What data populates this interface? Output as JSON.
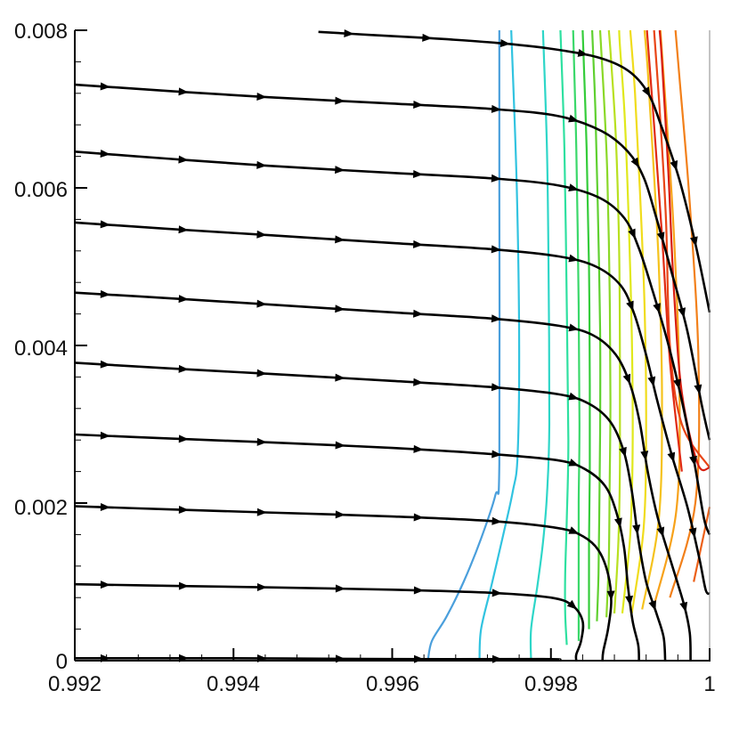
{
  "chart_data": {
    "type": "line",
    "title": "",
    "xlabel": "",
    "ylabel": "",
    "xlim": [
      0.992,
      1.0
    ],
    "ylim": [
      0,
      0.008
    ],
    "x_ticks": [
      "0.992",
      "0.994",
      "0.996",
      "0.998",
      "1"
    ],
    "y_ticks": [
      "0",
      "0.002",
      "0.004",
      "0.006",
      "0.008"
    ],
    "grid": false,
    "legend": "none",
    "streamlines": [
      {
        "points": [
          [
            0.99507,
            0.00798
          ],
          [
            0.99574,
            0.00794
          ],
          [
            0.99647,
            0.0079
          ],
          [
            0.99732,
            0.00784
          ],
          [
            0.99797,
            0.00777
          ],
          [
            0.99858,
            0.00766
          ],
          [
            0.99897,
            0.00749
          ],
          [
            0.99922,
            0.00721
          ],
          [
            0.9994,
            0.00676
          ],
          [
            0.99962,
            0.0061
          ],
          [
            0.99983,
            0.00525
          ],
          [
            1.0,
            0.00442
          ]
        ]
      },
      {
        "points": [
          [
            0.992,
            0.00731
          ],
          [
            0.99318,
            0.00723
          ],
          [
            0.99444,
            0.00715
          ],
          [
            0.996,
            0.00707
          ],
          [
            0.99727,
            0.007
          ],
          [
            0.9981,
            0.00691
          ],
          [
            0.99864,
            0.00672
          ],
          [
            0.99897,
            0.00646
          ],
          [
            0.99917,
            0.00613
          ],
          [
            0.99932,
            0.00565
          ],
          [
            0.99951,
            0.00497
          ],
          [
            0.99972,
            0.00418
          ],
          [
            0.9999,
            0.00325
          ],
          [
            1.0,
            0.0028
          ]
        ]
      },
      {
        "points": [
          [
            0.992,
            0.00646
          ],
          [
            0.99318,
            0.00637
          ],
          [
            0.99444,
            0.00628
          ],
          [
            0.996,
            0.00619
          ],
          [
            0.99727,
            0.00612
          ],
          [
            0.9981,
            0.00603
          ],
          [
            0.99862,
            0.00587
          ],
          [
            0.99893,
            0.00561
          ],
          [
            0.99911,
            0.00523
          ],
          [
            0.99928,
            0.0047
          ],
          [
            0.99947,
            0.00405
          ],
          [
            0.99965,
            0.0033
          ],
          [
            0.99981,
            0.0025
          ],
          [
            0.99993,
            0.0018
          ],
          [
            1.0,
            0.0016
          ]
        ]
      },
      {
        "points": [
          [
            0.992,
            0.00556
          ],
          [
            0.99318,
            0.00548
          ],
          [
            0.99444,
            0.0054
          ],
          [
            0.996,
            0.0053
          ],
          [
            0.99727,
            0.00522
          ],
          [
            0.9981,
            0.00513
          ],
          [
            0.99857,
            0.005
          ],
          [
            0.99888,
            0.00476
          ],
          [
            0.99905,
            0.0044
          ],
          [
            0.9992,
            0.00388
          ],
          [
            0.99934,
            0.0033
          ],
          [
            0.99952,
            0.00262
          ],
          [
            0.99972,
            0.00195
          ],
          [
            0.99987,
            0.0013
          ],
          [
            0.99995,
            0.0009
          ],
          [
            1.0,
            0.00085
          ]
        ]
      },
      {
        "points": [
          [
            0.992,
            0.00467
          ],
          [
            0.99318,
            0.0046
          ],
          [
            0.99444,
            0.00452
          ],
          [
            0.996,
            0.00442
          ],
          [
            0.99727,
            0.00434
          ],
          [
            0.9981,
            0.00425
          ],
          [
            0.99853,
            0.00413
          ],
          [
            0.99882,
            0.00388
          ],
          [
            0.999,
            0.0035
          ],
          [
            0.99912,
            0.00302
          ],
          [
            0.99922,
            0.0024
          ],
          [
            0.99935,
            0.0018
          ],
          [
            0.99953,
            0.0012
          ],
          [
            0.99968,
            0.0007
          ],
          [
            0.99975,
            0.00035
          ],
          [
            0.99976,
            0.0
          ]
        ]
      },
      {
        "points": [
          [
            0.992,
            0.00378
          ],
          [
            0.99318,
            0.00371
          ],
          [
            0.99444,
            0.00364
          ],
          [
            0.996,
            0.00355
          ],
          [
            0.99727,
            0.00347
          ],
          [
            0.9981,
            0.00338
          ],
          [
            0.99848,
            0.00326
          ],
          [
            0.99875,
            0.00303
          ],
          [
            0.99892,
            0.00265
          ],
          [
            0.99902,
            0.00215
          ],
          [
            0.9991,
            0.00155
          ],
          [
            0.9992,
            0.001
          ],
          [
            0.99933,
            0.0006
          ],
          [
            0.99942,
            0.0003
          ],
          [
            0.99944,
            0.0
          ]
        ]
      },
      {
        "points": [
          [
            0.992,
            0.00287
          ],
          [
            0.99318,
            0.00282
          ],
          [
            0.99444,
            0.00277
          ],
          [
            0.996,
            0.0027
          ],
          [
            0.99727,
            0.00262
          ],
          [
            0.9981,
            0.00254
          ],
          [
            0.99843,
            0.00243
          ],
          [
            0.99868,
            0.00222
          ],
          [
            0.99882,
            0.0019
          ],
          [
            0.99892,
            0.00145
          ],
          [
            0.99897,
            0.00095
          ],
          [
            0.99903,
            0.0005
          ],
          [
            0.9991,
            0.0002
          ],
          [
            0.99911,
            0.0
          ]
        ]
      },
      {
        "points": [
          [
            0.992,
            0.00196
          ],
          [
            0.99318,
            0.00192
          ],
          [
            0.99444,
            0.00188
          ],
          [
            0.996,
            0.00183
          ],
          [
            0.99727,
            0.00177
          ],
          [
            0.9981,
            0.00168
          ],
          [
            0.9984,
            0.00158
          ],
          [
            0.9986,
            0.0014
          ],
          [
            0.99872,
            0.0011
          ],
          [
            0.99876,
            0.00075
          ],
          [
            0.99872,
            0.0004
          ],
          [
            0.99866,
            0.00012
          ],
          [
            0.99865,
            0.0
          ]
        ]
      },
      {
        "points": [
          [
            0.992,
            0.00097
          ],
          [
            0.99318,
            0.00095
          ],
          [
            0.99444,
            0.00093
          ],
          [
            0.996,
            0.0009
          ],
          [
            0.99727,
            0.00086
          ],
          [
            0.998,
            0.0008
          ],
          [
            0.99827,
            0.0007
          ],
          [
            0.9984,
            0.0005
          ],
          [
            0.99838,
            0.00025
          ],
          [
            0.99832,
            8e-05
          ],
          [
            0.99832,
            0.0
          ]
        ]
      },
      {
        "points": [
          [
            0.992,
            3e-05
          ],
          [
            0.994,
            3e-05
          ],
          [
            0.996,
            2e-05
          ],
          [
            0.9979,
            2e-05
          ],
          [
            0.9981,
            1e-05
          ]
        ]
      }
    ],
    "contours": [
      {
        "color": "#4a9fdc",
        "points": [
          [
            0.99645,
            0.0
          ],
          [
            0.9965,
            0.00025
          ],
          [
            0.99668,
            0.00055
          ],
          [
            0.9969,
            0.001
          ],
          [
            0.99712,
            0.00155
          ],
          [
            0.9973,
            0.0021
          ],
          [
            0.99735,
            0.0025
          ],
          [
            0.99735,
            0.006
          ],
          [
            0.99735,
            0.008
          ]
        ]
      },
      {
        "color": "#31c3e0",
        "points": [
          [
            0.9971,
            0.0
          ],
          [
            0.99712,
            0.0004
          ],
          [
            0.99725,
            0.00095
          ],
          [
            0.9974,
            0.0016
          ],
          [
            0.99752,
            0.00215
          ],
          [
            0.99758,
            0.0026
          ],
          [
            0.9976,
            0.004
          ],
          [
            0.99757,
            0.006
          ],
          [
            0.9975,
            0.008
          ]
        ]
      },
      {
        "color": "#2ed6c8",
        "points": [
          [
            0.99775,
            0.0
          ],
          [
            0.99775,
            0.0004
          ],
          [
            0.99783,
            0.00095
          ],
          [
            0.9979,
            0.0015
          ],
          [
            0.99795,
            0.0021
          ],
          [
            0.99798,
            0.003
          ],
          [
            0.99797,
            0.005
          ],
          [
            0.99795,
            0.0065
          ],
          [
            0.9979,
            0.008
          ]
        ]
      },
      {
        "color": "#2ee0a0",
        "points": [
          [
            0.9982,
            0.0002
          ],
          [
            0.99818,
            0.0006
          ],
          [
            0.99818,
            0.0011
          ],
          [
            0.9982,
            0.0018
          ],
          [
            0.99822,
            0.0028
          ],
          [
            0.9982,
            0.0045
          ],
          [
            0.99817,
            0.0065
          ],
          [
            0.99812,
            0.008
          ]
        ]
      },
      {
        "color": "#3ad86a",
        "points": [
          [
            0.99835,
            0.00025
          ],
          [
            0.99835,
            0.0007
          ],
          [
            0.99835,
            0.0012
          ],
          [
            0.99835,
            0.002
          ],
          [
            0.99836,
            0.003
          ],
          [
            0.99835,
            0.0045
          ],
          [
            0.99832,
            0.0065
          ],
          [
            0.99828,
            0.008
          ]
        ]
      },
      {
        "color": "#34cc3a",
        "points": [
          [
            0.99848,
            0.0004
          ],
          [
            0.99848,
            0.0009
          ],
          [
            0.99848,
            0.0015
          ],
          [
            0.99849,
            0.0024
          ],
          [
            0.99849,
            0.0035
          ],
          [
            0.99848,
            0.005
          ],
          [
            0.99845,
            0.0065
          ],
          [
            0.9984,
            0.008
          ]
        ]
      },
      {
        "color": "#5fd030",
        "points": [
          [
            0.99858,
            0.0005
          ],
          [
            0.9986,
            0.0011
          ],
          [
            0.99861,
            0.0019
          ],
          [
            0.99862,
            0.0029
          ],
          [
            0.99862,
            0.0042
          ],
          [
            0.99859,
            0.0058
          ],
          [
            0.99856,
            0.007
          ],
          [
            0.99852,
            0.008
          ]
        ]
      },
      {
        "color": "#8ad828",
        "points": [
          [
            0.9987,
            0.00055
          ],
          [
            0.99873,
            0.0013
          ],
          [
            0.99874,
            0.0022
          ],
          [
            0.99875,
            0.0033
          ],
          [
            0.99874,
            0.0047
          ],
          [
            0.99871,
            0.0062
          ],
          [
            0.99866,
            0.0073
          ],
          [
            0.99862,
            0.008
          ]
        ]
      },
      {
        "color": "#b8e020",
        "points": [
          [
            0.9988,
            0.0006
          ],
          [
            0.99885,
            0.0015
          ],
          [
            0.99887,
            0.0025
          ],
          [
            0.99887,
            0.0037
          ],
          [
            0.99886,
            0.0052
          ],
          [
            0.99882,
            0.0066
          ],
          [
            0.99876,
            0.0076
          ],
          [
            0.99873,
            0.008
          ]
        ]
      },
      {
        "color": "#e0e81c",
        "points": [
          [
            0.9989,
            0.0006
          ],
          [
            0.999,
            0.0016
          ],
          [
            0.99903,
            0.0027
          ],
          [
            0.99902,
            0.0041
          ],
          [
            0.99898,
            0.0056
          ],
          [
            0.99893,
            0.0069
          ],
          [
            0.99887,
            0.0078
          ],
          [
            0.99886,
            0.008
          ]
        ]
      },
      {
        "color": "#f0dc1c",
        "points": [
          [
            0.99902,
            0.0006
          ],
          [
            0.99917,
            0.0017
          ],
          [
            0.9992,
            0.003
          ],
          [
            0.99918,
            0.0045
          ],
          [
            0.99912,
            0.006
          ],
          [
            0.99906,
            0.0072
          ],
          [
            0.999,
            0.008
          ]
        ]
      },
      {
        "color": "#f5c21c",
        "points": [
          [
            0.99915,
            0.00065
          ],
          [
            0.99936,
            0.0018
          ],
          [
            0.9994,
            0.0033
          ],
          [
            0.99936,
            0.005
          ],
          [
            0.99928,
            0.0065
          ],
          [
            0.99922,
            0.0075
          ],
          [
            0.99918,
            0.008
          ]
        ]
      },
      {
        "color": "#f7a21a",
        "points": [
          [
            0.9993,
            0.0007
          ],
          [
            0.99958,
            0.0019
          ],
          [
            0.99962,
            0.0035
          ],
          [
            0.99955,
            0.0054
          ],
          [
            0.99945,
            0.007
          ],
          [
            0.99938,
            0.008
          ]
        ]
      },
      {
        "color": "#f2801a",
        "points": [
          [
            0.9995,
            0.0008
          ],
          [
            0.99982,
            0.002
          ],
          [
            0.99986,
            0.0038
          ],
          [
            0.99975,
            0.0058
          ],
          [
            0.99962,
            0.0074
          ],
          [
            0.99957,
            0.008
          ]
        ]
      },
      {
        "color": "#ec6018",
        "points": [
          [
            0.9998,
            0.001
          ],
          [
            1.0,
            0.00195
          ]
        ]
      },
      {
        "color": "#e84516",
        "points": [
          [
            1.0,
            0.00245
          ],
          [
            0.99965,
            0.003
          ],
          [
            0.9995,
            0.004
          ],
          [
            0.99945,
            0.0056
          ],
          [
            0.99937,
            0.007
          ],
          [
            0.9993,
            0.008
          ]
        ]
      },
      {
        "color": "#e02a12",
        "points": [
          [
            0.99965,
            0.0024
          ],
          [
            0.9995,
            0.0038
          ],
          [
            0.9994,
            0.0054
          ],
          [
            0.9993,
            0.0068
          ],
          [
            0.99921,
            0.008
          ]
        ]
      },
      {
        "color": "#d81e10",
        "points": [
          [
            1.0,
            0.00245
          ],
          [
            0.99985,
            0.0025
          ],
          [
            0.99965,
            0.0034
          ],
          [
            0.99955,
            0.0047
          ],
          [
            0.99948,
            0.0062
          ],
          [
            0.9994,
            0.0076
          ],
          [
            0.99937,
            0.008
          ]
        ]
      }
    ]
  }
}
